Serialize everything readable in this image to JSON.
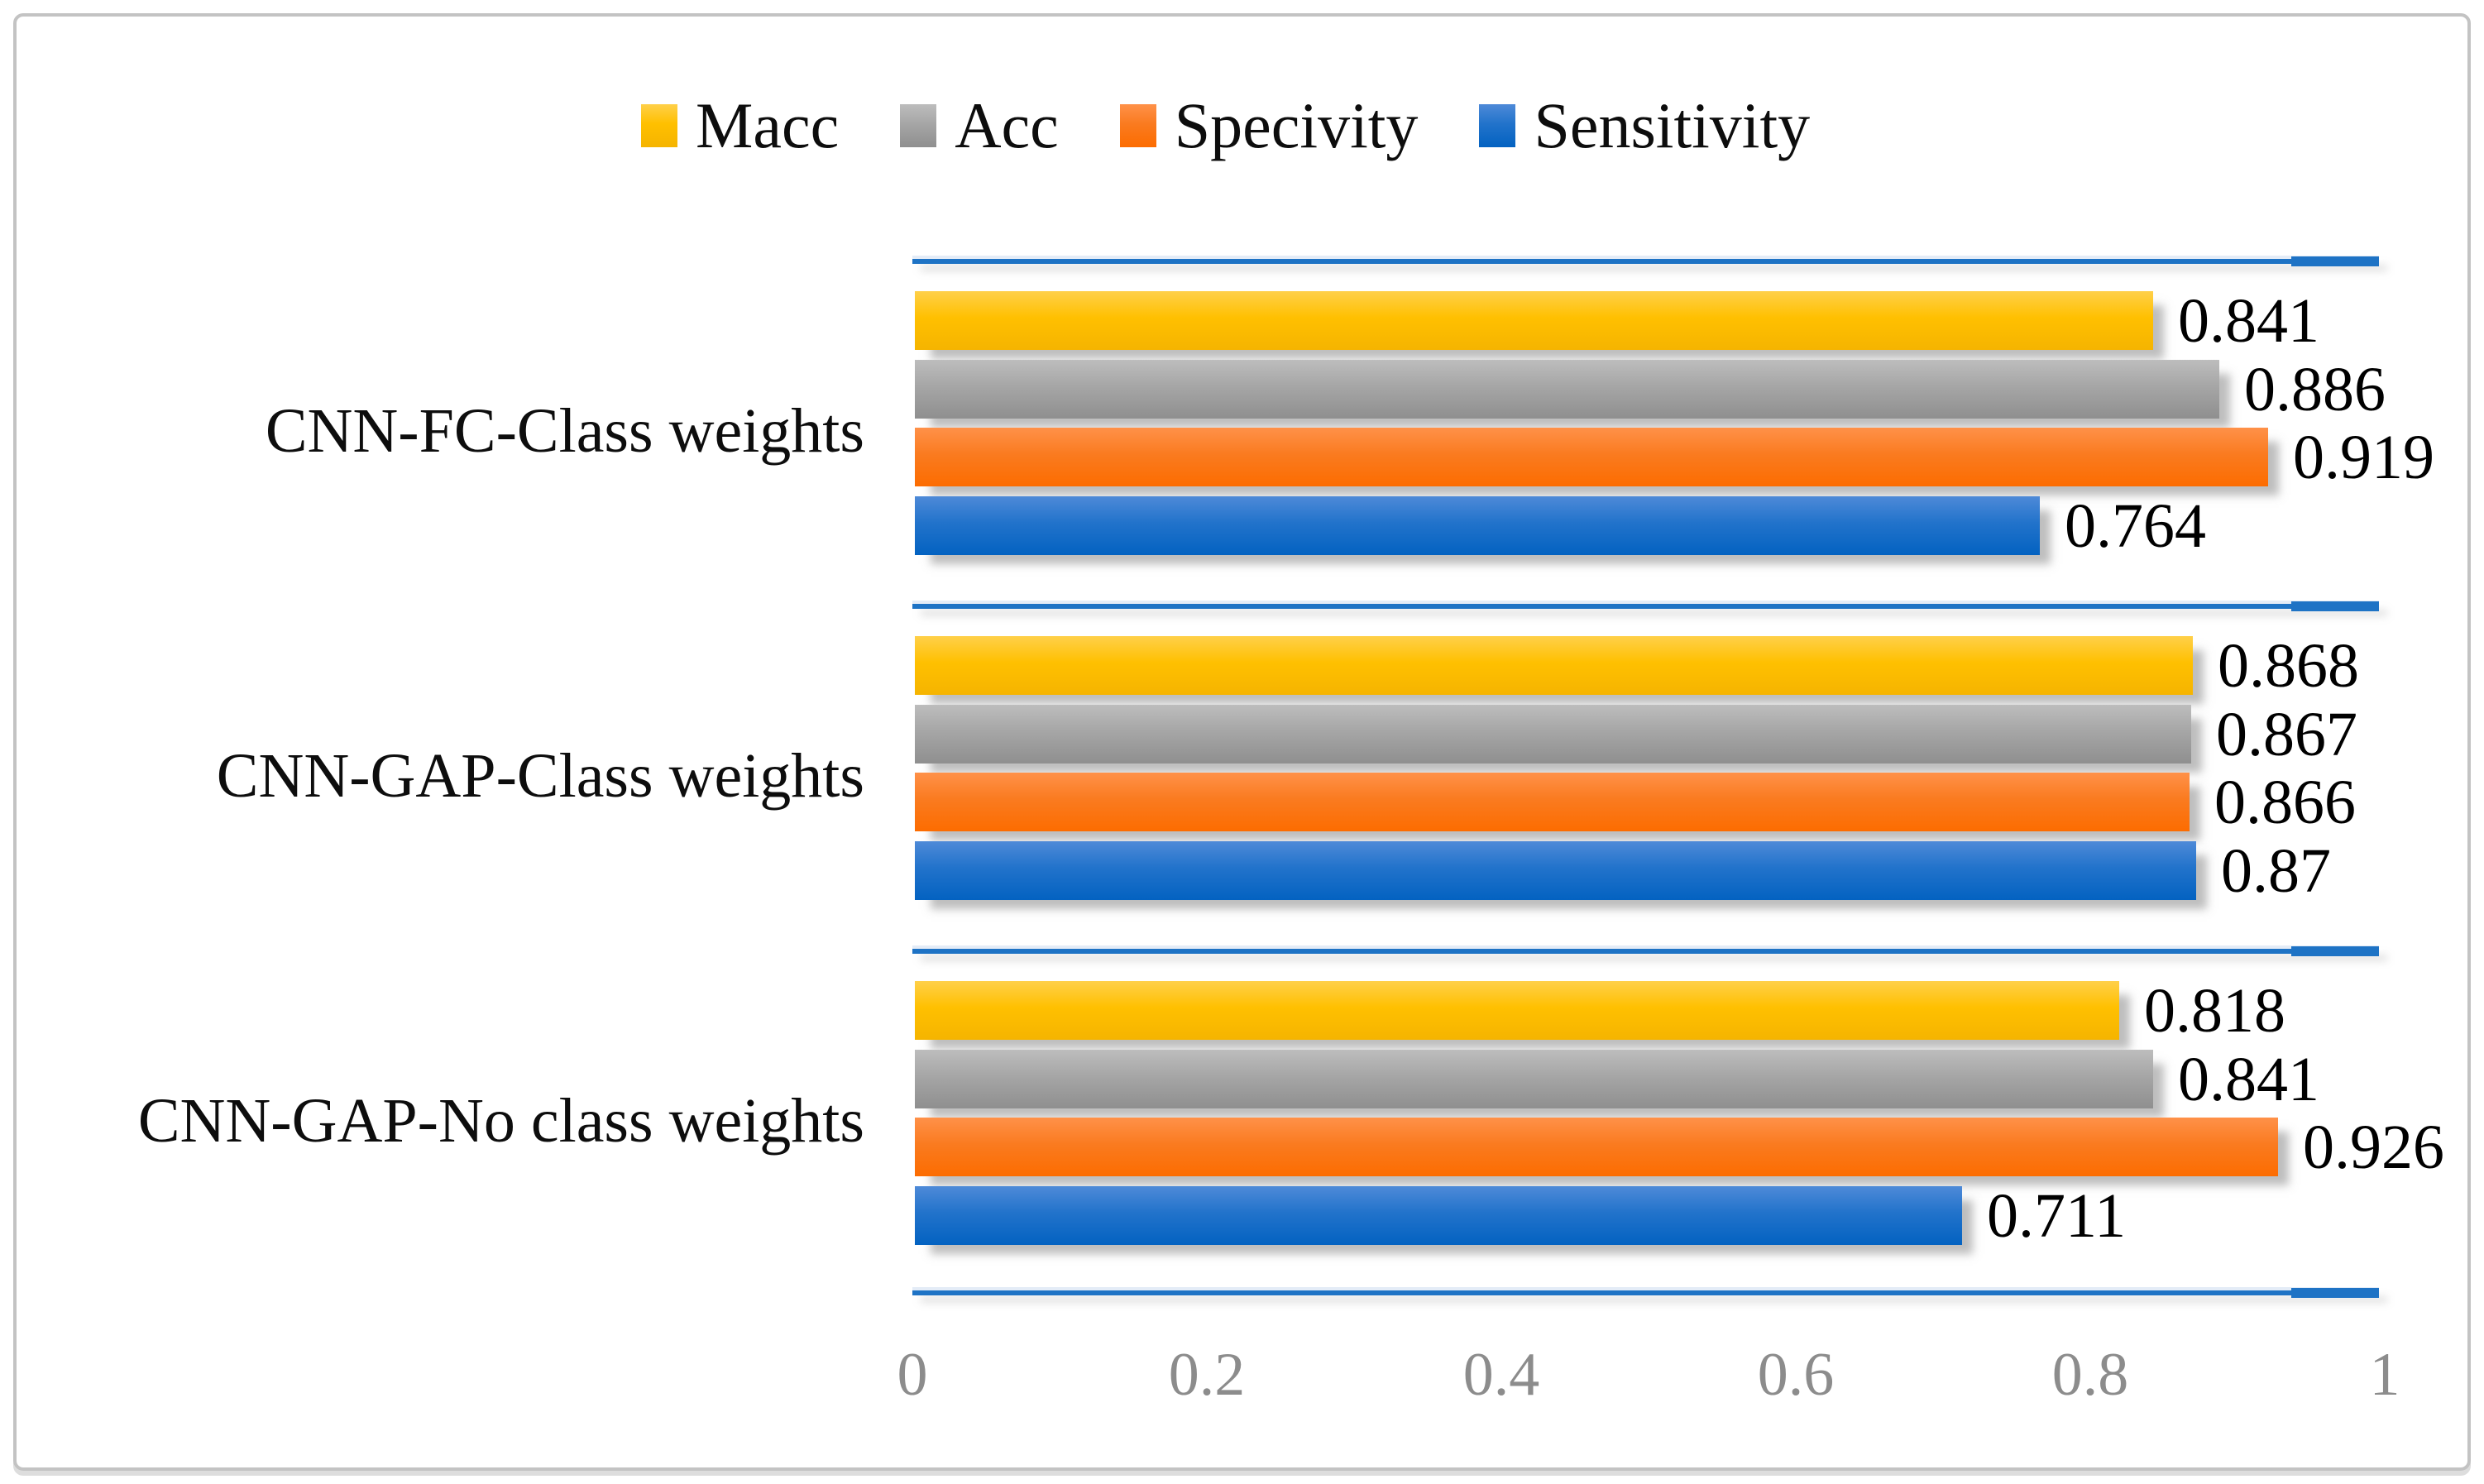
{
  "chart_data": {
    "type": "bar",
    "orientation": "horizontal",
    "title": "",
    "xlabel": "",
    "ylabel": "",
    "xlim": [
      0,
      1
    ],
    "x_ticks": [
      "0",
      "0.2",
      "0.4",
      "0.6",
      "0.8",
      "1"
    ],
    "grid": "category-separator-lines",
    "legend_position": "top",
    "categories": [
      "CNN-FC-Class weights",
      "CNN-GAP-Class weights",
      "CNN-GAP-No class weights"
    ],
    "series": [
      {
        "name": "Macc",
        "color": "#FFC000",
        "values": [
          0.841,
          0.868,
          0.818
        ]
      },
      {
        "name": "Acc",
        "color": "#A6A6A6",
        "values": [
          0.886,
          0.867,
          0.841
        ]
      },
      {
        "name": "Specivity",
        "color": "#FA7B20",
        "values": [
          0.919,
          0.866,
          0.926
        ]
      },
      {
        "name": "Sensitivity",
        "color": "#2273CB",
        "values": [
          0.764,
          0.87,
          0.711
        ]
      }
    ],
    "data_labels": [
      [
        "0.841",
        "0.886",
        "0.919",
        "0.764"
      ],
      [
        "0.868",
        "0.867",
        "0.866",
        "0.87"
      ],
      [
        "0.818",
        "0.841",
        "0.926",
        "0.711"
      ]
    ]
  },
  "colors": {
    "gridline_blue": "#1E73C5",
    "tick_gray": "#8C8C8C",
    "frame_gray": "#C3C3C3",
    "label_black": "#000000"
  }
}
